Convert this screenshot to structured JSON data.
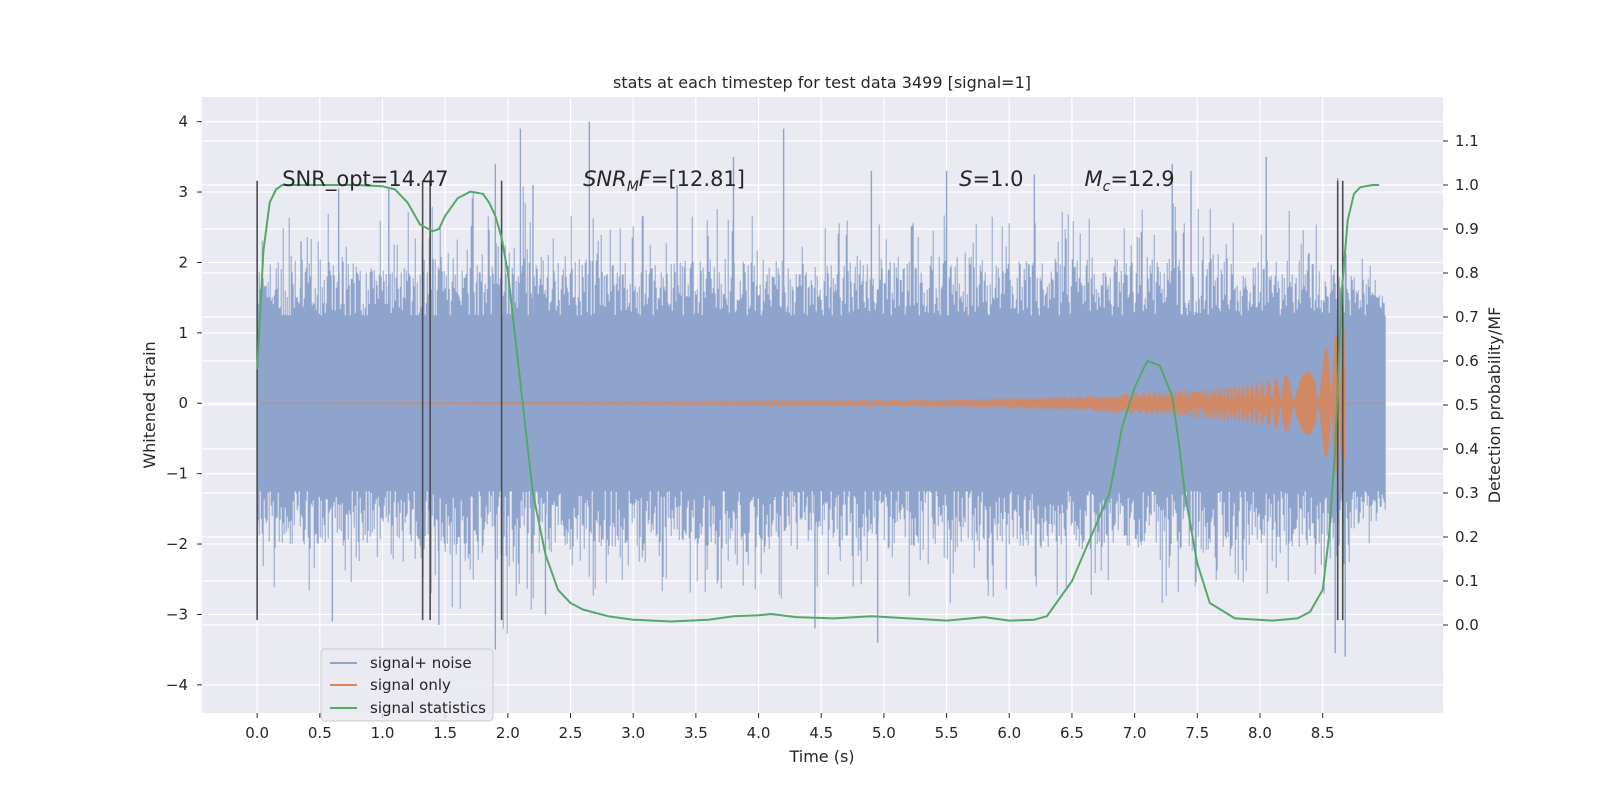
{
  "chart_data": {
    "type": "line",
    "title": "stats at each timestep for test data 3499 [signal=1]",
    "xlabel": "Time (s)",
    "ylabel": "Whitened strain",
    "ylabel_right": "Detection probability/MF",
    "xlim": [
      -0.44,
      9.46
    ],
    "ylim": [
      -4.4,
      4.35
    ],
    "ylim_right": [
      -0.2,
      1.2
    ],
    "x_ticks": [
      0.0,
      0.5,
      1.0,
      1.5,
      2.0,
      2.5,
      3.0,
      3.5,
      4.0,
      4.5,
      5.0,
      5.5,
      6.0,
      6.5,
      7.0,
      7.5,
      8.0,
      8.5
    ],
    "x_tick_labels": [
      "0.0",
      "0.5",
      "1.0",
      "1.5",
      "2.0",
      "2.5",
      "3.0",
      "3.5",
      "4.0",
      "4.5",
      "5.0",
      "5.5",
      "6.0",
      "6.5",
      "7.0",
      "7.5",
      "8.0",
      "8.5"
    ],
    "y_ticks": [
      4,
      3,
      2,
      1,
      0,
      -1,
      -2,
      -3,
      -4
    ],
    "y_tick_labels": [
      "4",
      "3",
      "2",
      "1",
      "0",
      "−1",
      "−2",
      "−3",
      "−4"
    ],
    "y_right_ticks": [
      1.1,
      1.0,
      0.9,
      0.8,
      0.7,
      0.6,
      0.5,
      0.4,
      0.3,
      0.2,
      0.1,
      0.0
    ],
    "y_right_tick_labels": [
      "1.1",
      "1.0",
      "0.9",
      "0.8",
      "0.7",
      "0.6",
      "0.5",
      "0.4",
      "0.3",
      "0.2",
      "0.1",
      "0.0"
    ],
    "grid": true,
    "legend_position": "lower-left",
    "annotations": [
      {
        "text": "SNR_opt=14.47",
        "x": 0.2,
        "y": 3.2
      },
      {
        "text": "SNR_MF=[12.81]",
        "x": 2.6,
        "y": 3.2
      },
      {
        "text": "S=1.0",
        "x": 5.6,
        "y": 3.2
      },
      {
        "text": "M_c=12.9",
        "x": 6.6,
        "y": 3.2
      }
    ],
    "vertical_markers": [
      0.0,
      1.32,
      1.38,
      1.95,
      8.62,
      8.66
    ],
    "vertical_marker_range": [
      -3.08,
      3.16
    ],
    "series": [
      {
        "name": "signal+ noise",
        "color": "#8fa4cc",
        "axis": "left",
        "x_range": [
          0.0,
          9.0
        ],
        "envelope_x": [
          0.0,
          0.5,
          1.0,
          1.5,
          2.0,
          2.5,
          3.0,
          3.5,
          4.0,
          4.5,
          5.0,
          5.5,
          6.0,
          6.5,
          7.0,
          7.5,
          8.0,
          8.5,
          9.0
        ],
        "envelope_y": [
          2.6,
          2.8,
          2.6,
          2.9,
          3.3,
          2.8,
          2.7,
          2.7,
          2.9,
          2.6,
          2.8,
          2.9,
          2.7,
          2.8,
          2.8,
          3.0,
          2.7,
          2.8,
          1.8
        ],
        "spikes": [
          {
            "x": 0.35,
            "y": 2.3
          },
          {
            "x": 0.6,
            "y": -3.1
          },
          {
            "x": 0.65,
            "y": 3.05
          },
          {
            "x": 1.05,
            "y": 3.05
          },
          {
            "x": 1.45,
            "y": -3.15
          },
          {
            "x": 1.9,
            "y": 3.4
          },
          {
            "x": 1.9,
            "y": -3.5
          },
          {
            "x": 2.1,
            "y": 3.9
          },
          {
            "x": 2.2,
            "y": 3.1
          },
          {
            "x": 2.3,
            "y": -3.0
          },
          {
            "x": 2.65,
            "y": 4.0
          },
          {
            "x": 3.35,
            "y": 3.1
          },
          {
            "x": 3.8,
            "y": 3.5
          },
          {
            "x": 4.2,
            "y": 3.9
          },
          {
            "x": 4.45,
            "y": -3.2
          },
          {
            "x": 4.9,
            "y": 3.3
          },
          {
            "x": 4.95,
            "y": -3.4
          },
          {
            "x": 5.5,
            "y": 3.3
          },
          {
            "x": 6.2,
            "y": 3.25
          },
          {
            "x": 7.3,
            "y": 3.4
          },
          {
            "x": 7.45,
            "y": 3.3
          },
          {
            "x": 8.05,
            "y": 3.5
          },
          {
            "x": 8.6,
            "y": -3.55
          },
          {
            "x": 8.68,
            "y": -3.6
          },
          {
            "x": 8.62,
            "y": 3.2
          }
        ]
      },
      {
        "name": "signal only",
        "color": "#dd8452",
        "axis": "left",
        "x_range": [
          0.0,
          8.68
        ],
        "envelope_x": [
          0.0,
          5.5,
          6.5,
          7.5,
          8.0,
          8.3,
          8.5,
          8.6,
          8.68
        ],
        "envelope_y": [
          0.0,
          0.05,
          0.1,
          0.2,
          0.3,
          0.45,
          0.7,
          1.0,
          1.4
        ]
      },
      {
        "name": "signal statistics",
        "color": "#55a868",
        "axis": "right",
        "x": [
          0.0,
          0.05,
          0.1,
          0.15,
          0.2,
          0.3,
          0.5,
          0.8,
          1.0,
          1.1,
          1.2,
          1.3,
          1.4,
          1.45,
          1.5,
          1.6,
          1.7,
          1.8,
          1.85,
          1.9,
          1.95,
          2.0,
          2.1,
          2.2,
          2.3,
          2.4,
          2.5,
          2.6,
          2.8,
          3.0,
          3.3,
          3.6,
          3.8,
          4.0,
          4.1,
          4.3,
          4.6,
          4.9,
          5.2,
          5.5,
          5.8,
          6.0,
          6.2,
          6.3,
          6.5,
          6.8,
          6.9,
          7.0,
          7.1,
          7.2,
          7.3,
          7.35,
          7.4,
          7.5,
          7.6,
          7.8,
          8.1,
          8.3,
          8.4,
          8.5,
          8.55,
          8.6,
          8.65,
          8.7,
          8.75,
          8.8,
          8.9,
          8.95
        ],
        "y": [
          0.58,
          0.85,
          0.96,
          0.99,
          1.0,
          1.0,
          1.0,
          1.0,
          0.997,
          0.99,
          0.96,
          0.91,
          0.895,
          0.9,
          0.93,
          0.97,
          0.985,
          0.98,
          0.96,
          0.93,
          0.88,
          0.8,
          0.55,
          0.3,
          0.16,
          0.08,
          0.05,
          0.035,
          0.02,
          0.012,
          0.008,
          0.012,
          0.02,
          0.022,
          0.025,
          0.018,
          0.015,
          0.02,
          0.015,
          0.01,
          0.018,
          0.01,
          0.012,
          0.02,
          0.1,
          0.3,
          0.45,
          0.54,
          0.6,
          0.59,
          0.52,
          0.42,
          0.3,
          0.14,
          0.05,
          0.015,
          0.01,
          0.015,
          0.03,
          0.08,
          0.2,
          0.4,
          0.75,
          0.92,
          0.98,
          0.995,
          1.0,
          1.0
        ]
      }
    ]
  }
}
